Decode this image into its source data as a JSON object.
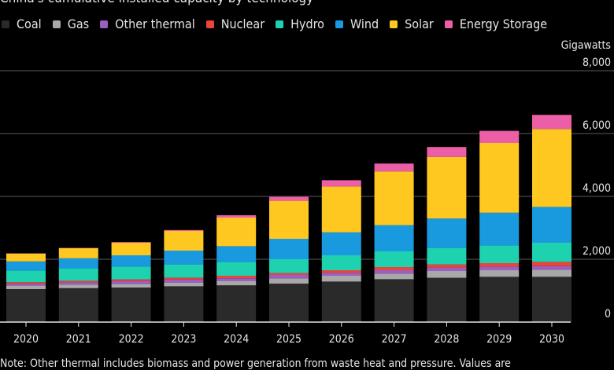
{
  "title": "China's cumulative installed capacity by technology",
  "unit_label": "Gigawatts",
  "note": "Note: Other thermal includes biomass and power generation from waste heat and pressure. Values are",
  "chart_data": {
    "type": "bar",
    "stacked": true,
    "title": "China's cumulative installed capacity by technology",
    "ylabel": "Gigawatts",
    "ylim": [
      0,
      8000
    ],
    "yticks": [
      "0",
      "2,000",
      "4,000",
      "6,000",
      "8,000"
    ],
    "ytick_values": [
      0,
      2000,
      4000,
      6000,
      8000
    ],
    "grid": true,
    "legend_placement": "top-left",
    "categories": [
      "2020",
      "2021",
      "2022",
      "2023",
      "2024",
      "2025",
      "2026",
      "2027",
      "2028",
      "2029",
      "2030"
    ],
    "series": [
      {
        "name": "Coal",
        "color": "#2a2a2a",
        "values": [
          1050,
          1080,
          1100,
          1140,
          1170,
          1225,
          1290,
          1365,
          1410,
          1440,
          1440
        ]
      },
      {
        "name": "Gas",
        "color": "#a8a8a8",
        "values": [
          110,
          110,
          110,
          110,
          140,
          165,
          185,
          175,
          215,
          210,
          225
        ]
      },
      {
        "name": "Other thermal",
        "color": "#9b5fc0",
        "values": [
          60,
          75,
          95,
          105,
          85,
          110,
          90,
          110,
          110,
          115,
          115
        ]
      },
      {
        "name": "Nuclear",
        "color": "#e8453c",
        "values": [
          50,
          50,
          55,
          60,
          80,
          60,
          85,
          100,
          100,
          110,
          135
        ]
      },
      {
        "name": "Hydro",
        "color": "#1ed2b0",
        "values": [
          370,
          395,
          405,
          420,
          440,
          440,
          475,
          500,
          525,
          565,
          610
        ]
      },
      {
        "name": "Wind",
        "color": "#1a9ade",
        "values": [
          290,
          320,
          360,
          440,
          500,
          650,
          730,
          835,
          935,
          1040,
          1140
        ]
      },
      {
        "name": "Solar",
        "color": "#ffc820",
        "values": [
          250,
          320,
          400,
          625,
          910,
          1210,
          1460,
          1710,
          1960,
          2220,
          2480
        ]
      },
      {
        "name": "Energy Storage",
        "color": "#ec5fa6",
        "values": [
          10,
          10,
          20,
          30,
          75,
          125,
          200,
          250,
          315,
          385,
          450
        ]
      }
    ]
  }
}
